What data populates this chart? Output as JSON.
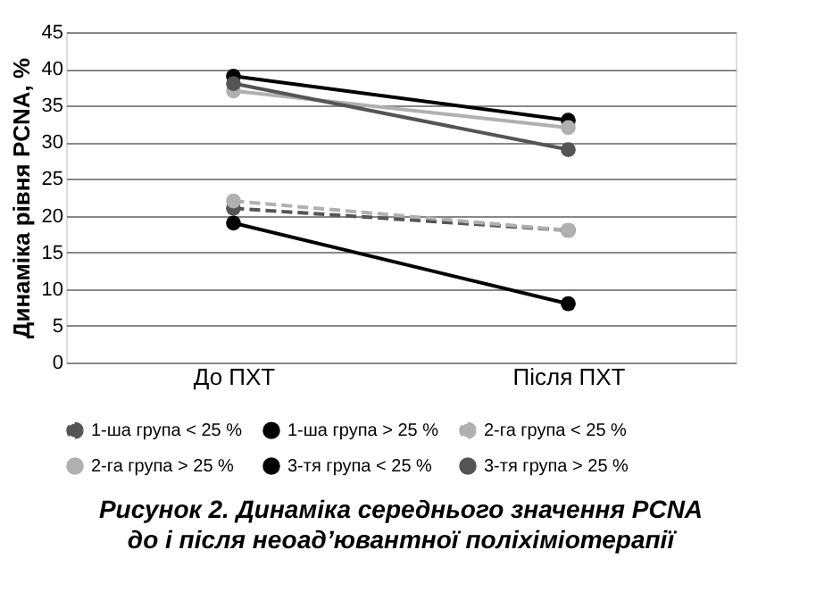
{
  "chart_data": {
    "type": "line",
    "title": "Рисунок 2. Динаміка середнього значення PCNA до і після неоад’ювантної поліхіміотерапії",
    "ylabel": "Динаміка рівня PCNA, %",
    "categories": [
      "До ПХТ",
      "Після ПХТ"
    ],
    "ylim": [
      0,
      45
    ],
    "yticks": [
      0,
      5,
      10,
      15,
      20,
      25,
      30,
      35,
      40,
      45
    ],
    "grid": "y",
    "legend": "bottom",
    "marker": "circle",
    "series": [
      {
        "name": "1-ша група < 25 %",
        "color": "#555555",
        "values": [
          21,
          18
        ],
        "line_style": "dashed"
      },
      {
        "name": "1-ша група > 25 %",
        "color": "#000000",
        "values": [
          39,
          33
        ],
        "line_style": "solid"
      },
      {
        "name": "2-га група < 25 %",
        "color": "#b0b0b0",
        "values": [
          22,
          18
        ],
        "line_style": "dashed"
      },
      {
        "name": "2-га група > 25 %",
        "color": "#b0b0b0",
        "values": [
          37,
          32
        ],
        "line_style": "solid"
      },
      {
        "name": "3-тя група < 25 %",
        "color": "#000000",
        "values": [
          19,
          8
        ],
        "line_style": "solid"
      },
      {
        "name": "3-тя група > 25 %",
        "color": "#555555",
        "values": [
          38,
          29
        ],
        "line_style": "solid"
      }
    ]
  }
}
